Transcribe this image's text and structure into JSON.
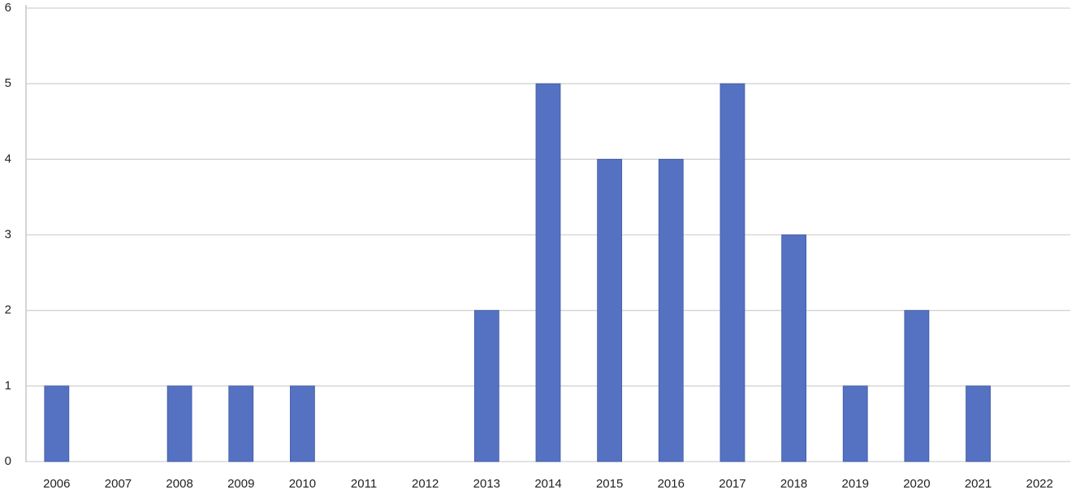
{
  "chart_data": {
    "type": "bar",
    "categories": [
      "2006",
      "2007",
      "2008",
      "2009",
      "2010",
      "2011",
      "2012",
      "2013",
      "2014",
      "2015",
      "2016",
      "2017",
      "2018",
      "2019",
      "2020",
      "2021",
      "2022"
    ],
    "values": [
      1,
      0,
      1,
      1,
      1,
      0,
      0,
      2,
      5,
      4,
      4,
      5,
      3,
      1,
      2,
      1,
      0
    ],
    "color": "#5571c1",
    "ylim": [
      0,
      6
    ],
    "yticks": [
      0,
      1,
      2,
      3,
      4,
      5,
      6
    ],
    "grid": true
  }
}
